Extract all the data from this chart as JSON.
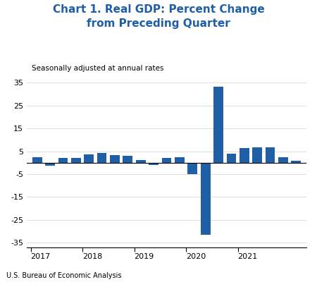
{
  "title_line1": "Chart 1. Real GDP: Percent Change",
  "title_line2": "from Preceding Quarter",
  "subtitle": "Seasonally adjusted at annual rates",
  "source": "U.S. Bureau of Economic Analysis",
  "title_color": "#1F5FA6",
  "bar_color": "#1F5FA6",
  "background_color": "#ffffff",
  "ylim": [
    -37,
    37
  ],
  "yticks": [
    -35,
    -25,
    -15,
    -5,
    5,
    15,
    25,
    35
  ],
  "ytick_labels": [
    "-35",
    "-25",
    "-15",
    "-5",
    "5",
    "15",
    "25",
    "35"
  ],
  "year_labels": [
    "2017",
    "2018",
    "2019",
    "2020",
    "2021"
  ],
  "values": [
    2.3,
    -1.2,
    2.1,
    2.1,
    3.5,
    4.2,
    3.4,
    2.9,
    1.1,
    -1.1,
    2.1,
    2.3,
    -5.0,
    -31.4,
    33.4,
    4.0,
    6.3,
    6.7,
    6.7,
    2.3,
    1.0
  ],
  "bar_width": 0.75
}
